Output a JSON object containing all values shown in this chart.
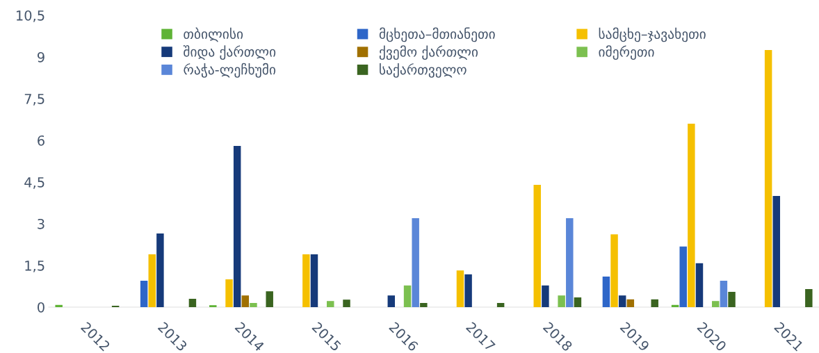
{
  "chart_data": {
    "type": "bar",
    "categories": [
      "2012",
      "2013",
      "2014",
      "2015",
      "2016",
      "2017",
      "2018",
      "2019",
      "2020",
      "2021"
    ],
    "series": [
      {
        "name": "თბილისი",
        "color": "#5fb336",
        "values": [
          0.08,
          null,
          0.07,
          null,
          null,
          null,
          null,
          null,
          0.08,
          null
        ]
      },
      {
        "name": "მცხეთა–მთიანეთი",
        "color": "#2e66c8",
        "values": [
          null,
          0.95,
          null,
          null,
          null,
          null,
          null,
          1.1,
          2.18,
          null
        ]
      },
      {
        "name": "სამცხე–ჯავახეთი",
        "color": "#f5c000",
        "values": [
          null,
          1.9,
          1.0,
          1.9,
          null,
          1.32,
          4.4,
          2.62,
          6.6,
          9.25
        ]
      },
      {
        "name": "შიდა ქართლი",
        "color": "#163a7a",
        "values": [
          null,
          2.65,
          5.8,
          1.9,
          0.42,
          1.18,
          0.78,
          0.42,
          1.58,
          4.0
        ]
      },
      {
        "name": "ქვემო ქართლი",
        "color": "#a07000",
        "values": [
          null,
          null,
          0.42,
          null,
          null,
          null,
          null,
          0.28,
          null,
          null
        ]
      },
      {
        "name": "იმერეთი",
        "color": "#7cc050",
        "values": [
          null,
          null,
          0.15,
          0.22,
          0.78,
          null,
          0.42,
          null,
          0.22,
          null
        ]
      },
      {
        "name": "რაჭა-ლეჩხუმი",
        "color": "#5a86d8",
        "values": [
          null,
          null,
          null,
          null,
          3.2,
          null,
          3.2,
          null,
          0.95,
          null
        ]
      },
      {
        "name": "საქართველო",
        "color": "#3a6420",
        "values": [
          0.05,
          0.3,
          0.57,
          0.27,
          0.15,
          0.15,
          0.35,
          0.28,
          0.55,
          0.65
        ]
      }
    ],
    "ylim": [
      0,
      10.5
    ],
    "yticks": [
      0,
      {
        "value": 1.5,
        "label": "1,5"
      },
      3,
      {
        "value": 4.5,
        "label": "4,5"
      },
      6,
      {
        "value": 7.5,
        "label": "7,5"
      },
      9,
      {
        "value": 10.5,
        "label": "10,5"
      }
    ],
    "grid": false,
    "legend": "top"
  }
}
